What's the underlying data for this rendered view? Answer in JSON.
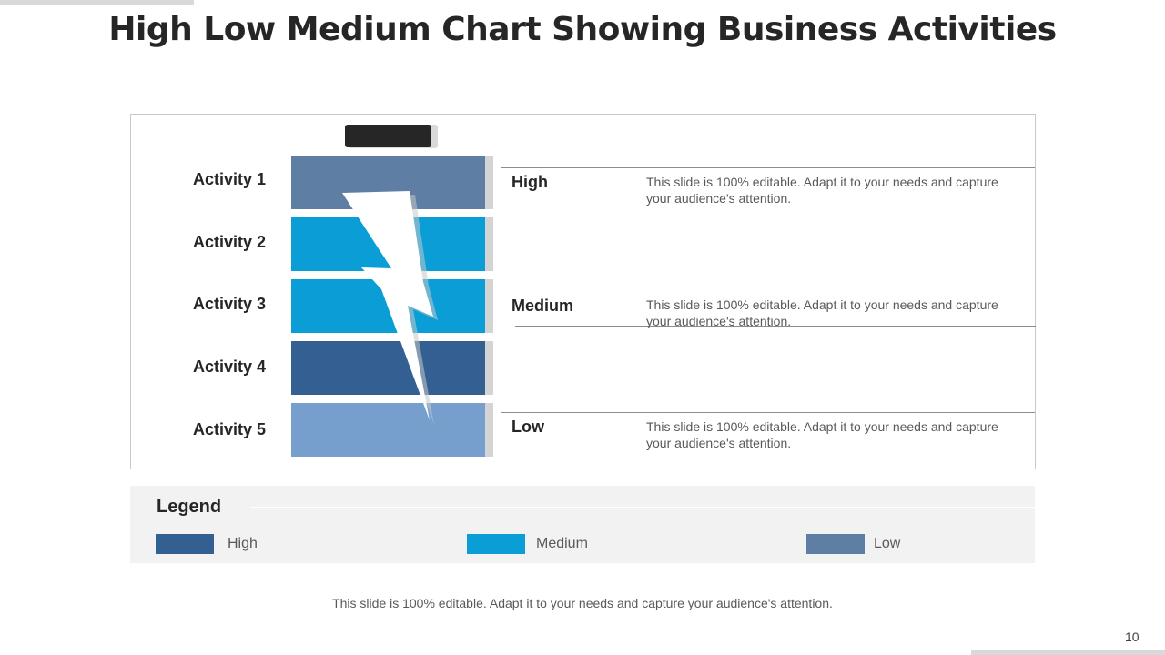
{
  "slide": {
    "title": "High Low Medium Chart Showing Business Activities",
    "footer_note": "This slide is 100% editable. Adapt it to your needs and capture your audience's attention.",
    "page_number": "10"
  },
  "activities": [
    {
      "label": "Activity 1",
      "color": "#5E7FA3"
    },
    {
      "label": "Activity 2",
      "color": "#0A9DD6"
    },
    {
      "label": "Activity 3",
      "color": "#0A9DD6"
    },
    {
      "label": "Activity 4",
      "color": "#335F92"
    },
    {
      "label": "Activity 5",
      "color": "#769FCD"
    }
  ],
  "levels": [
    {
      "label": "High",
      "description": "This slide is 100% editable. Adapt it to your needs and capture your audience's attention."
    },
    {
      "label": "Medium",
      "description": "This slide is 100% editable. Adapt it to your needs and capture your audience's attention."
    },
    {
      "label": "Low",
      "description": "This slide is 100% editable. Adapt it to your needs and capture your audience's attention."
    }
  ],
  "legend": {
    "title": "Legend",
    "items": [
      {
        "label": "High",
        "color": "#335F92"
      },
      {
        "label": "Medium",
        "color": "#0A9DD6"
      },
      {
        "label": "Low",
        "color": "#5E7FA3"
      }
    ]
  },
  "icons": {
    "battery_cap": "battery-cap-icon",
    "bolt": "lightning-bolt-icon"
  }
}
